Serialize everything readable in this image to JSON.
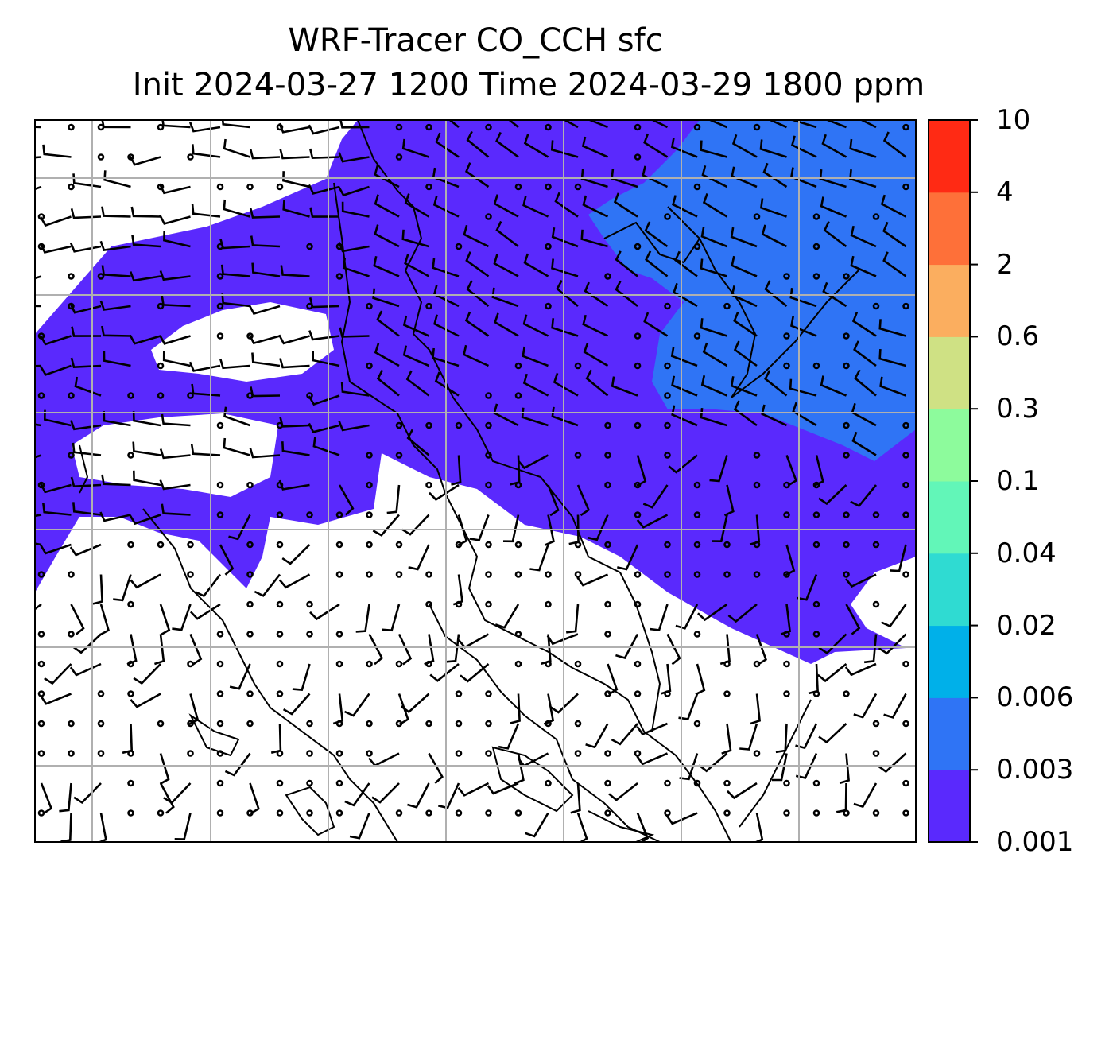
{
  "title": {
    "line1": "WRF-Tracer CO_CCH sfc",
    "line2": "Init 2024-03-27 1200 Time 2024-03-29 1800 ppm"
  },
  "colorbar": {
    "levels": [
      "0.001",
      "0.003",
      "0.006",
      "0.02",
      "0.04",
      "0.1",
      "0.3",
      "0.6",
      "2",
      "4",
      "10"
    ],
    "colors": [
      "#5a29fd",
      "#2f74f5",
      "#00b0e9",
      "#2fdbd2",
      "#62f6b8",
      "#8dfb9c",
      "#cfe184",
      "#fbae5f",
      "#fe7039",
      "#ff2a14"
    ]
  },
  "map": {
    "fill_color_low": "#5a29fd",
    "fill_color_mid": "#2f74f5",
    "gridline_color": "#b0b0b0",
    "coastline_color": "#000000"
  },
  "chart_data": {
    "type": "heatmap",
    "variable": "CO_CCH",
    "level": "sfc",
    "units": "ppm",
    "init": "2024-03-27 1200",
    "valid": "2024-03-29 1800",
    "contour_levels": [
      0.001,
      0.003,
      0.006,
      0.02,
      0.04,
      0.1,
      0.3,
      0.6,
      2,
      4,
      10
    ],
    "overlay": "wind barbs"
  }
}
